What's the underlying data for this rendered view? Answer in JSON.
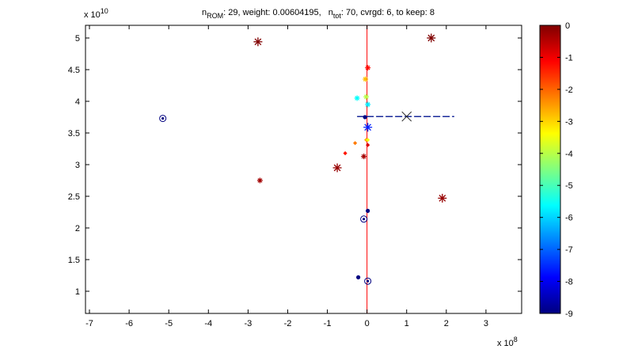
{
  "chart_data": {
    "type": "scatter",
    "title": {
      "n_rom_label": "n",
      "n_rom_sub": "ROM",
      "n_rom_text": ": 29, weight: 0.00604195,",
      "n_tot_label": "n",
      "n_tot_sub": "tot",
      "n_tot_text": ": 70, cvrgd: 6, to keep: 8"
    },
    "x_exponent": "x 10",
    "x_exponent_power": "8",
    "y_exponent": "x 10",
    "y_exponent_power": "10",
    "xlim": [
      -7.1,
      3.9
    ],
    "ylim": [
      0.65,
      5.2
    ],
    "xticks": [
      -7,
      -6,
      -5,
      -4,
      -3,
      -2,
      -1,
      0,
      1,
      2,
      3
    ],
    "xtick_labels": [
      "-7",
      "-6",
      "-5",
      "-4",
      "-3",
      "-2",
      "-1",
      "0",
      "1",
      "2",
      "3"
    ],
    "yticks": [
      1,
      1.5,
      2,
      2.5,
      3,
      3.5,
      4,
      4.5,
      5
    ],
    "ytick_labels": [
      "1",
      "1.5",
      "2",
      "2.5",
      "3",
      "3.5",
      "4",
      "4.5",
      "5"
    ],
    "colorbar": {
      "range": [
        -9,
        0
      ],
      "ticks": [
        0,
        -1,
        -2,
        -3,
        -4,
        -5,
        -6,
        -7,
        -8,
        -9
      ],
      "tick_labels": [
        "0",
        "-1",
        "-2",
        "-3",
        "-4",
        "-5",
        "-6",
        "-7",
        "-8",
        "-9"
      ]
    },
    "vertical_line": {
      "x": 0,
      "color": "#ff0000"
    },
    "dashed_line": {
      "x": [
        -0.25,
        2.2
      ],
      "y": [
        3.76,
        3.76
      ],
      "color": "#1a2a9a"
    },
    "cross_marker": {
      "x": 1.0,
      "y": 3.76
    },
    "points": [
      {
        "x": -5.15,
        "y": 3.73,
        "c": -9,
        "marker": "circle-dot"
      },
      {
        "x": -2.75,
        "y": 4.94,
        "c": 0,
        "marker": "star"
      },
      {
        "x": 1.62,
        "y": 5.0,
        "c": 0,
        "marker": "star"
      },
      {
        "x": -2.7,
        "y": 2.75,
        "c": -0.3,
        "marker": "star-small"
      },
      {
        "x": -0.75,
        "y": 2.95,
        "c": -0.2,
        "marker": "star"
      },
      {
        "x": 1.9,
        "y": 2.47,
        "c": -0.2,
        "marker": "star"
      },
      {
        "x": 0.02,
        "y": 4.53,
        "c": -1.2,
        "marker": "star-small"
      },
      {
        "x": -0.04,
        "y": 4.35,
        "c": -2.8,
        "marker": "star-small"
      },
      {
        "x": -0.02,
        "y": 4.07,
        "c": -4,
        "marker": "star-small"
      },
      {
        "x": -0.25,
        "y": 4.05,
        "c": -5.6,
        "marker": "star-small"
      },
      {
        "x": 0.02,
        "y": 3.95,
        "c": -5.8,
        "marker": "star-small"
      },
      {
        "x": -0.05,
        "y": 3.75,
        "c": -9,
        "marker": "dot"
      },
      {
        "x": 0.02,
        "y": 3.59,
        "c": -7.6,
        "marker": "star"
      },
      {
        "x": -0.02,
        "y": 3.39,
        "c": -2.6,
        "marker": "diamond"
      },
      {
        "x": 0.02,
        "y": 3.39,
        "c": -3.5,
        "marker": "diamond"
      },
      {
        "x": -0.3,
        "y": 3.34,
        "c": -2.2,
        "marker": "diamond"
      },
      {
        "x": 0.02,
        "y": 3.31,
        "c": -0.8,
        "marker": "diamond"
      },
      {
        "x": -0.55,
        "y": 3.18,
        "c": -1.3,
        "marker": "diamond"
      },
      {
        "x": -0.08,
        "y": 3.13,
        "c": -0.3,
        "marker": "star-small"
      },
      {
        "x": 0.02,
        "y": 2.27,
        "c": -9,
        "marker": "dot"
      },
      {
        "x": -0.08,
        "y": 2.14,
        "c": -9,
        "marker": "circle-dot"
      },
      {
        "x": -0.22,
        "y": 1.22,
        "c": -9,
        "marker": "dot"
      },
      {
        "x": 0.02,
        "y": 1.16,
        "c": -9,
        "marker": "circle-dot"
      }
    ]
  }
}
